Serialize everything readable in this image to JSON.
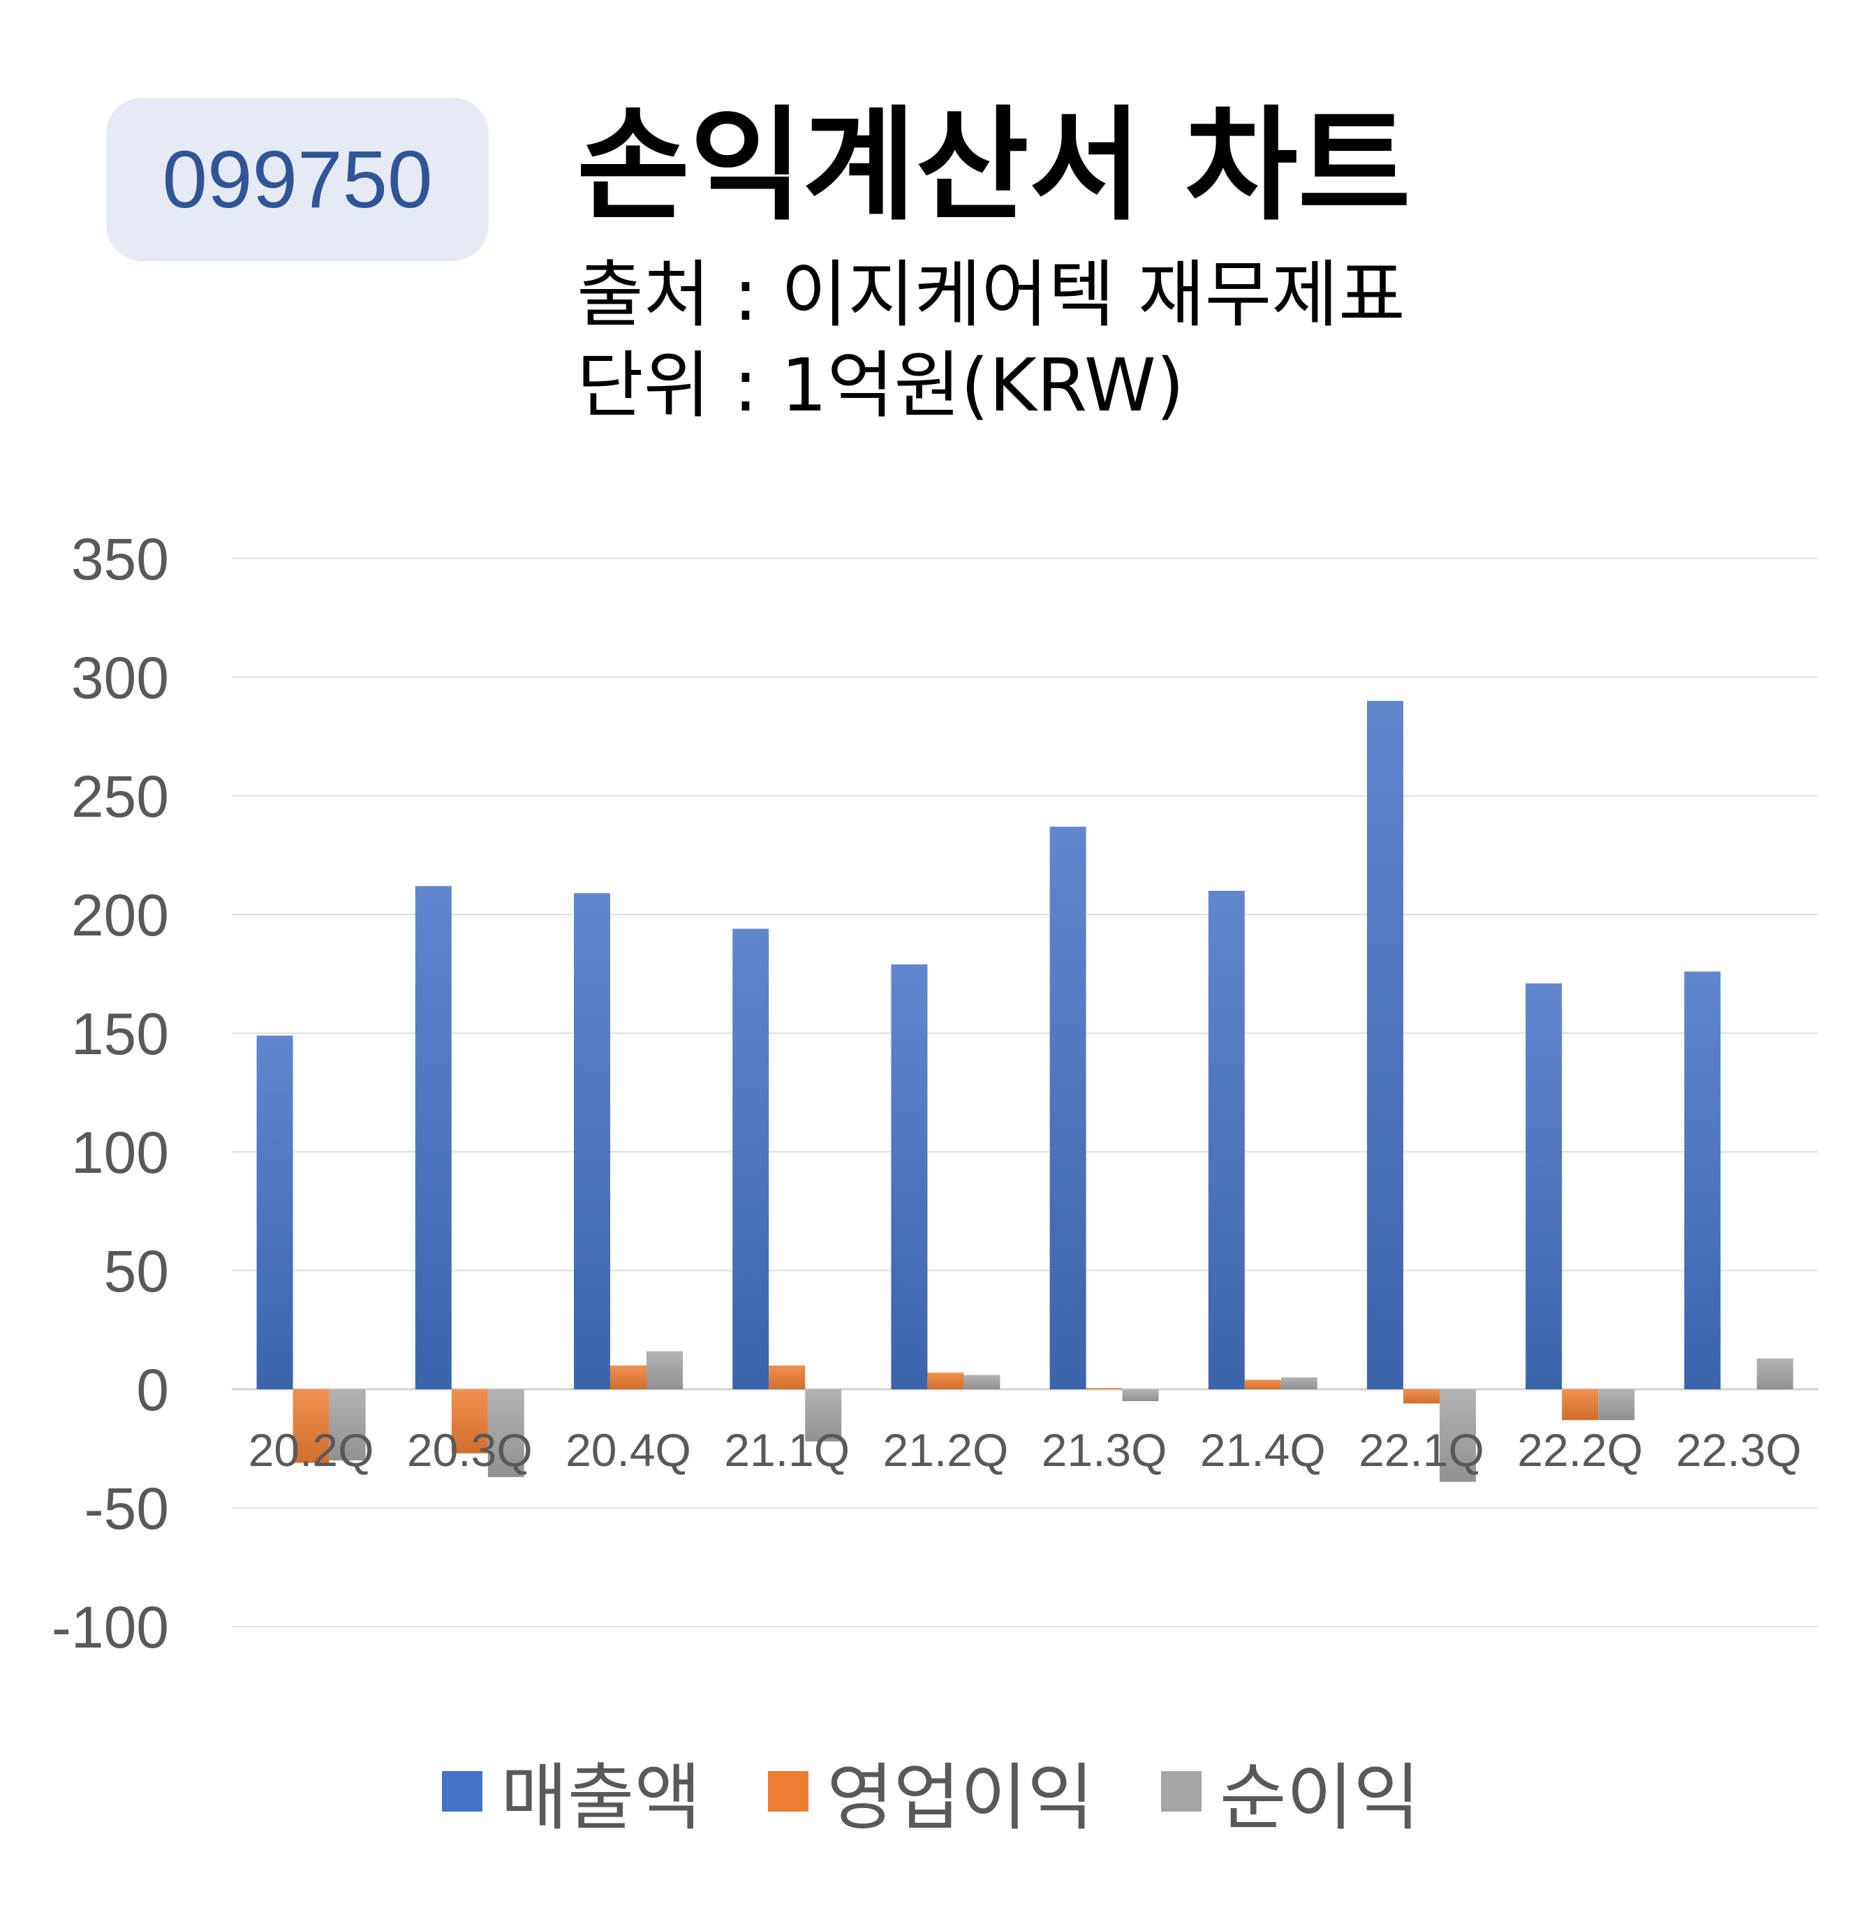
{
  "header": {
    "ticker": "099750",
    "title": "손익계산서 차트",
    "source": "출처 : 이지케어텍 재무제표",
    "unit": "단위 : 1억원(KRW)"
  },
  "chart_data": {
    "type": "bar",
    "categories": [
      "20.2Q",
      "20.3Q",
      "20.4Q",
      "21.1Q",
      "21.2Q",
      "21.3Q",
      "21.4Q",
      "22.1Q",
      "22.2Q",
      "22.3Q"
    ],
    "series": [
      {
        "name": "매출액",
        "color": "#4472c4",
        "values": [
          149,
          212,
          209,
          194,
          179,
          237,
          210,
          290,
          171,
          176
        ]
      },
      {
        "name": "영업이익",
        "color": "#ed7d31",
        "values": [
          -31,
          -27,
          10,
          10,
          7,
          0.5,
          4,
          -6,
          -13,
          0
        ]
      },
      {
        "name": "순이익",
        "color": "#a5a5a5",
        "values": [
          -30,
          -37,
          16,
          -22,
          6,
          -5,
          5,
          -39,
          -13,
          13
        ]
      }
    ],
    "ylim": [
      -100,
      350
    ],
    "yticks": [
      -100,
      -50,
      0,
      50,
      100,
      150,
      200,
      250,
      300,
      350
    ],
    "grid": true,
    "legend": "bottom"
  }
}
